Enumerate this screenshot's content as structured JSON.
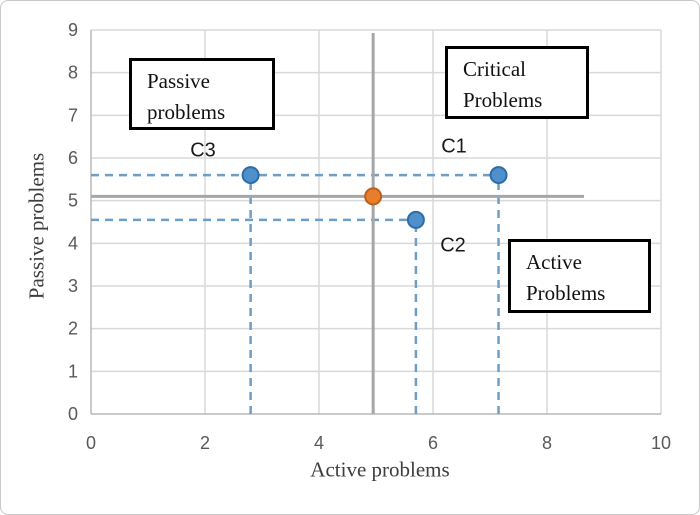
{
  "chart_data": {
    "type": "scatter",
    "xlabel": "Active problems",
    "ylabel": "Passive problems",
    "xlim": [
      0,
      10
    ],
    "ylim": [
      0,
      9
    ],
    "xticks": [
      0,
      2,
      4,
      6,
      8,
      10
    ],
    "yticks": [
      0,
      1,
      2,
      3,
      4,
      5,
      6,
      7,
      8,
      9
    ],
    "grid": true,
    "points": [
      {
        "label": "C1",
        "x": 7.15,
        "y": 5.6
      },
      {
        "label": "C2",
        "x": 5.7,
        "y": 4.55
      },
      {
        "label": "C3",
        "x": 2.8,
        "y": 5.6
      }
    ],
    "center_point": {
      "x": 4.95,
      "y": 5.1
    },
    "crosshair": {
      "x": 4.95,
      "y": 5.1,
      "v_from": 0,
      "v_to": 8.93,
      "h_from": 0,
      "h_to": 8.65
    },
    "guide_lines": [
      {
        "orient": "h",
        "value": 5.6,
        "from": 0,
        "to": 7.15
      },
      {
        "orient": "h",
        "value": 4.55,
        "from": 0,
        "to": 5.7
      },
      {
        "orient": "v",
        "value": 2.8,
        "from": 0,
        "to": 5.6
      },
      {
        "orient": "v",
        "value": 5.7,
        "from": 0,
        "to": 4.55
      },
      {
        "orient": "v",
        "value": 7.15,
        "from": 0,
        "to": 5.6
      }
    ]
  },
  "annotations": {
    "passive": {
      "text": "Passive\nproblems"
    },
    "critical": {
      "text": "Critical\nProblems"
    },
    "active": {
      "text": "Active\nProblems"
    }
  },
  "colors": {
    "grid": "#d9d9d9",
    "axis": "#b8b8b8",
    "tick_text": "#595959",
    "crosshair": "#a6a6a6",
    "guide": "#6d9ec7",
    "blue_fill": "#4f8fcc",
    "blue_stroke": "#2e6ca6",
    "orange_fill": "#e87d2e",
    "orange_stroke": "#bc5e1c"
  }
}
